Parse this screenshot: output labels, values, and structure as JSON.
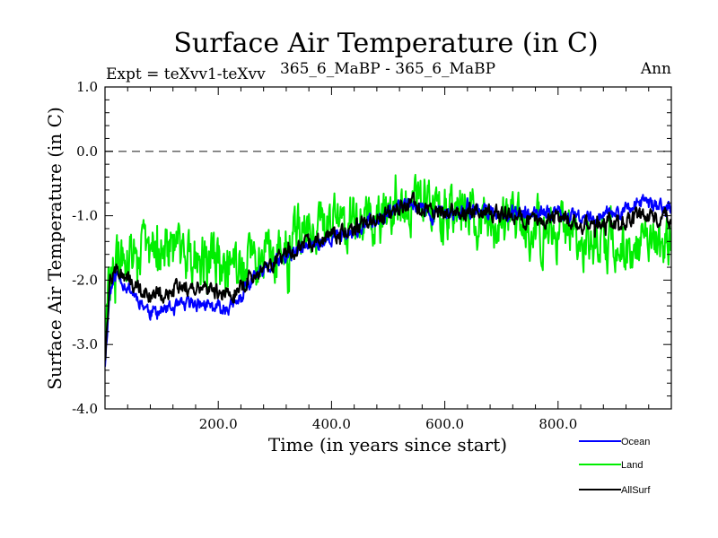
{
  "chart_data": {
    "type": "line",
    "title": "Surface Air Temperature (in C)",
    "subtitle_left": "Expt = teXvv1-teXvv",
    "subtitle_center": "365_6_MaBP - 365_6_MaBP",
    "subtitle_right": "Ann",
    "xlabel": "Time (in years since start)",
    "ylabel": "Surface Air Temperature (in C)",
    "xlim": [
      0,
      1000
    ],
    "ylim": [
      -4.0,
      1.0
    ],
    "xticks_labeled": [
      200,
      400,
      600,
      800
    ],
    "xtick_labels": [
      "200.0",
      "400.0",
      "600.0",
      "800.0"
    ],
    "yticks_labeled": [
      -4.0,
      -3.0,
      -2.0,
      -1.0,
      0.0,
      1.0
    ],
    "ytick_labels": [
      "-4.0",
      "-3.0",
      "-2.0",
      "-1.0",
      "0.0",
      "1.0"
    ],
    "reference_line": {
      "y": 0.0,
      "style": "dashed"
    },
    "grid": false,
    "legend_position": "bottom-right, outside plot",
    "trend_x": [
      0,
      8,
      20,
      50,
      80,
      120,
      160,
      200,
      230,
      260,
      300,
      350,
      400,
      450,
      500,
      540,
      580,
      620,
      660,
      700,
      750,
      800,
      850,
      900,
      950,
      1000
    ],
    "series": [
      {
        "name": "Ocean",
        "color": "#0000ff",
        "trend": [
          -3.3,
          -2.2,
          -1.9,
          -2.2,
          -2.5,
          -2.45,
          -2.35,
          -2.45,
          -2.4,
          -2.0,
          -1.75,
          -1.5,
          -1.35,
          -1.2,
          -0.95,
          -0.8,
          -1.0,
          -0.95,
          -0.9,
          -0.95,
          -1.0,
          -0.95,
          -1.05,
          -0.95,
          -0.8,
          -0.9
        ],
        "noise": 0.09,
        "seed": 11
      },
      {
        "name": "Land",
        "color": "#00ee00",
        "trend": [
          -3.1,
          -2.0,
          -1.8,
          -1.6,
          -1.5,
          -1.55,
          -1.6,
          -1.75,
          -1.8,
          -1.7,
          -1.5,
          -1.25,
          -1.1,
          -1.0,
          -0.95,
          -0.8,
          -0.9,
          -0.95,
          -1.05,
          -1.15,
          -1.2,
          -1.3,
          -1.35,
          -1.45,
          -1.5,
          -1.45
        ],
        "noise": 0.33,
        "seed": 29
      },
      {
        "name": "AllSurf",
        "color": "#000000",
        "trend": [
          -3.2,
          -2.1,
          -1.85,
          -2.05,
          -2.25,
          -2.15,
          -2.05,
          -2.2,
          -2.2,
          -1.9,
          -1.7,
          -1.45,
          -1.3,
          -1.15,
          -0.95,
          -0.8,
          -0.95,
          -0.95,
          -0.95,
          -1.0,
          -1.05,
          -1.05,
          -1.15,
          -1.1,
          -1.0,
          -1.05
        ],
        "noise": 0.1,
        "seed": 47
      }
    ]
  }
}
